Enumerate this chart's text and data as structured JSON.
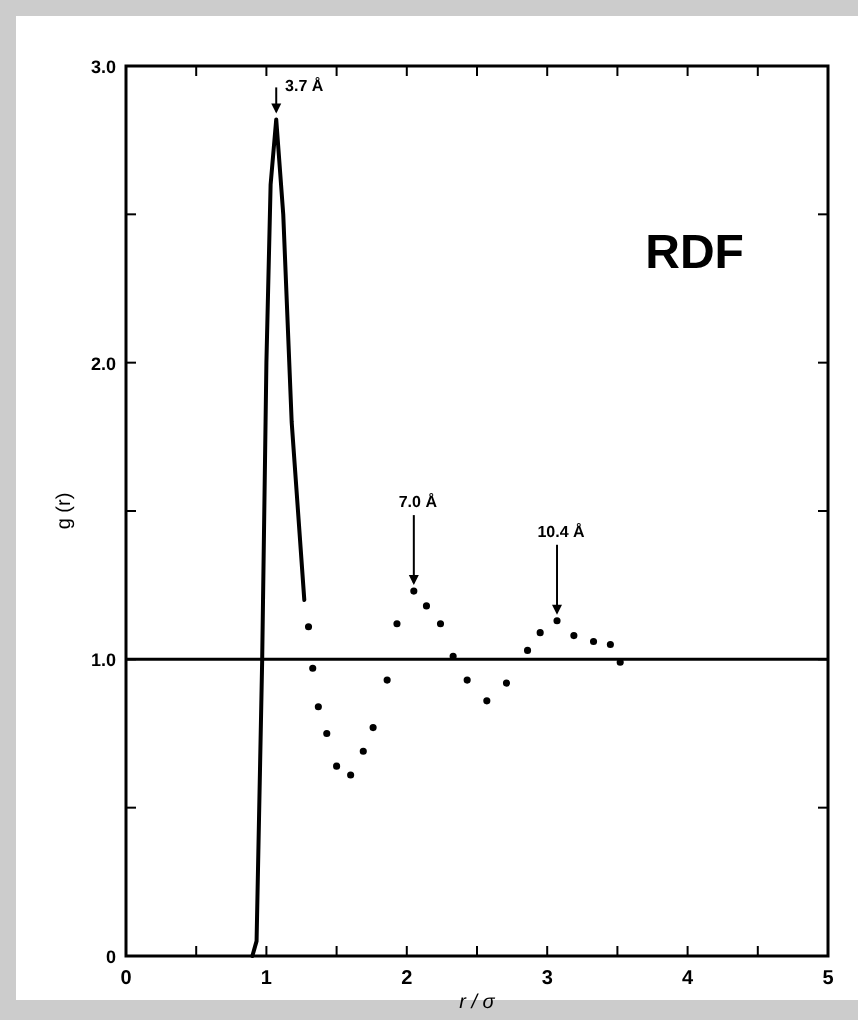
{
  "chart_data": {
    "type": "line",
    "xlabel": "r / σ",
    "ylabel": "g (r)",
    "xlim": [
      0,
      5
    ],
    "ylim": [
      0,
      3
    ],
    "xticks": [
      0,
      {
        "value": 0.5,
        "label": null
      },
      1,
      {
        "value": 1.5,
        "label": null
      },
      2,
      {
        "value": 2.5,
        "label": null
      },
      3,
      {
        "value": 3.5,
        "label": null
      },
      4,
      {
        "value": 4.5,
        "label": null
      },
      5
    ],
    "yticks": [
      {
        "value": 0,
        "label": "0"
      },
      {
        "value": 0.5,
        "label": null
      },
      {
        "value": 1,
        "label": "1.0"
      },
      {
        "value": 1.5,
        "label": null
      },
      {
        "value": 2,
        "label": "2.0"
      },
      {
        "value": 2.5,
        "label": null
      },
      {
        "value": 3,
        "label": "3.0"
      }
    ],
    "grid": false,
    "series": [
      {
        "color": "#000000",
        "x": [
          0.9,
          0.93,
          0.97,
          1.0,
          1.03,
          1.07,
          1.12,
          1.18,
          1.27
        ],
        "values": [
          0,
          0.05,
          1.0,
          2.0,
          2.6,
          2.82,
          2.5,
          1.8,
          1.2
        ]
      },
      {
        "type": "scatter",
        "color": "#000000",
        "marker": "circle",
        "x": [
          1.3,
          1.33,
          1.37,
          1.43,
          1.5,
          1.6,
          1.69,
          1.76,
          1.86,
          1.93,
          2.05,
          2.14,
          2.24,
          2.33,
          2.43,
          2.57,
          2.71,
          2.86,
          2.95,
          3.07,
          3.19,
          3.33,
          3.45,
          3.52
        ],
        "values": [
          1.11,
          0.97,
          0.84,
          0.75,
          0.64,
          0.61,
          0.69,
          0.77,
          0.93,
          1.12,
          1.23,
          1.18,
          1.12,
          1.01,
          0.93,
          0.86,
          0.92,
          1.03,
          1.09,
          1.13,
          1.08,
          1.06,
          1.05,
          0.99
        ]
      }
    ],
    "ref_lines": [
      {
        "axis": "y",
        "value": 1,
        "color": "#000000"
      }
    ],
    "annotations": [
      {
        "text": "3.7 Å",
        "x": 1.07,
        "y": 2.82
      },
      {
        "text": "7.0 Å",
        "x": 2.05,
        "y": 1.23
      },
      {
        "text": "10.4 Å",
        "x": 3.07,
        "y": 1.13
      },
      "RDF"
    ]
  }
}
